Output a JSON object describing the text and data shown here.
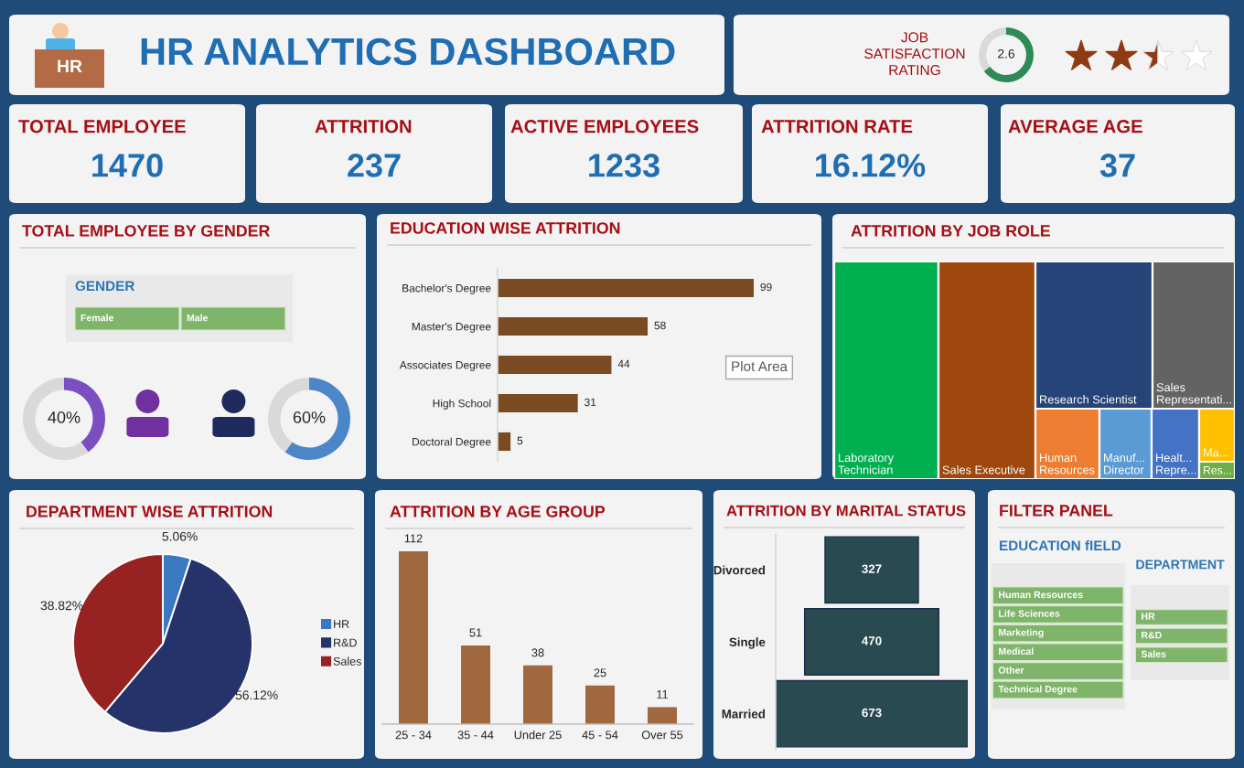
{
  "chart_data": [
    {
      "type": "other",
      "title": "HR ANALYTICS DASHBOARD",
      "annotations": [
        "HR"
      ]
    },
    {
      "type": "donut",
      "title": "JOB SATISFACTION RATING",
      "categories": [
        null,
        null
      ],
      "values": [
        65,
        35
      ],
      "colors": [
        "#2e8b57",
        "#d9d9d9"
      ],
      "annotations": [
        "2.6"
      ]
    },
    {
      "type": "other",
      "title": "TOTAL EMPLOYEE",
      "annotations": [
        "1470"
      ]
    },
    {
      "type": "other",
      "title": "ATTRITION",
      "annotations": [
        "237"
      ]
    },
    {
      "type": "other",
      "title": "ACTIVE EMPLOYEES",
      "annotations": [
        "1233"
      ]
    },
    {
      "type": "other",
      "title": "ATTRITION RATE",
      "annotations": [
        "16.12%"
      ]
    },
    {
      "type": "other",
      "title": "AVERAGE AGE",
      "annotations": [
        "37"
      ]
    },
    {
      "type": "other",
      "title": "TOTAL EMPLOYEE BY GENDER",
      "subtitle": "GENDER",
      "categories": [
        "Female",
        "Male"
      ],
      "color": "#7fb56a"
    },
    {
      "type": "donut",
      "categories": [
        null,
        null
      ],
      "values": [
        40,
        60
      ],
      "colors": [
        "#7b4fc0",
        "#d9d9d9"
      ],
      "value_labels": [
        "40%",
        null
      ]
    },
    {
      "type": "donut",
      "categories": [
        null,
        null
      ],
      "values": [
        60,
        40
      ],
      "colors": [
        "#4a86c8",
        "#d9d9d9"
      ],
      "value_labels": [
        "60%",
        null
      ]
    },
    {
      "type": "bar",
      "orientation": "horizontal",
      "title": "EDUCATION WISE ATTRITION",
      "categories": [
        "Bachelor's Degree",
        "Master's Degree",
        "Associates Degree",
        "High School",
        "Doctoral Degree"
      ],
      "values": [
        99,
        58,
        44,
        31,
        5
      ],
      "color": "#7a4a22",
      "data_labels": true,
      "tick_labels": "y",
      "annotations": [
        "Plot Area"
      ]
    },
    {
      "type": "other",
      "title": "ATTRITION BY JOB ROLE",
      "categories": [
        "Laboratory Technician",
        "Sales Executive",
        "Research Scientist",
        "Sales Representati...",
        "Human Resources",
        "Manuf... Director",
        "Healt... Repre...",
        "Ma...",
        "Res..."
      ],
      "colors": [
        "#00b050",
        "#9e480e",
        "#264478",
        "#636363",
        "#ed7d31",
        "#5b9bd5",
        "#4472c4",
        "#ffc000",
        "#70ad47"
      ]
    },
    {
      "type": "pie",
      "title": "DEPARTMENT WISE ATTRITION",
      "categories": [
        "HR",
        "R&D",
        "Sales"
      ],
      "values": [
        5.06,
        56.12,
        38.82
      ],
      "colors": [
        "#3b78c2",
        "#26336b",
        "#962222"
      ],
      "value_labels": [
        "5.06%",
        "56.12%",
        "38.82%"
      ],
      "legend": "right"
    },
    {
      "type": "bar",
      "title": "ATTRITION BY AGE GROUP",
      "categories": [
        "25 - 34",
        "35 - 44",
        "Under 25",
        "45 - 54",
        "Over 55"
      ],
      "values": [
        112,
        51,
        38,
        25,
        11
      ],
      "color": "#a0683f",
      "data_labels": true,
      "tick_labels": "x"
    },
    {
      "type": "other",
      "title": "ATTRITION BY MARITAL STATUS",
      "categories": [
        "Divorced",
        "Single",
        "Married"
      ],
      "values": [
        327,
        470,
        673
      ],
      "color": "#2a4a52",
      "data_labels": true
    },
    {
      "type": "other",
      "title": "FILTER PANEL",
      "subtitle": "EDUCATION fIELD",
      "categories": [
        "Human Resources",
        "Life Sciences",
        "Marketing",
        "Medical",
        "Other",
        "Technical Degree"
      ],
      "color": "#7fb56a"
    },
    {
      "type": "other",
      "title": "DEPARTMENT",
      "categories": [
        "HR",
        "R&D",
        "Sales"
      ],
      "color": "#7fb56a"
    }
  ]
}
